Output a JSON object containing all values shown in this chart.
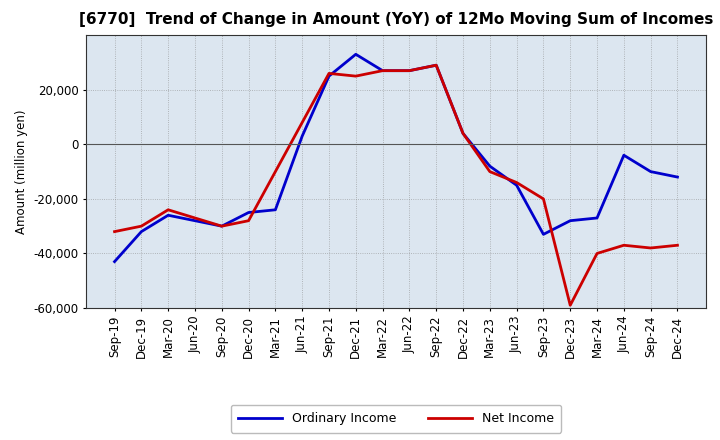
{
  "title": "[6770]  Trend of Change in Amount (YoY) of 12Mo Moving Sum of Incomes",
  "ylabel": "Amount (million yen)",
  "xlabels": [
    "Sep-19",
    "Dec-19",
    "Mar-20",
    "Jun-20",
    "Sep-20",
    "Dec-20",
    "Mar-21",
    "Jun-21",
    "Sep-21",
    "Dec-21",
    "Mar-22",
    "Jun-22",
    "Sep-22",
    "Dec-22",
    "Mar-23",
    "Jun-23",
    "Sep-23",
    "Dec-23",
    "Mar-24",
    "Jun-24",
    "Sep-24",
    "Dec-24"
  ],
  "ordinary_income": [
    -43000,
    -32000,
    -26000,
    -28000,
    -30000,
    -25000,
    -24000,
    3000,
    25000,
    33000,
    27000,
    27000,
    29000,
    4000,
    -8000,
    -15000,
    -33000,
    -28000,
    -27000,
    -4000,
    -10000,
    -12000
  ],
  "net_income": [
    -32000,
    -30000,
    -24000,
    -27000,
    -30000,
    -28000,
    -10000,
    8000,
    26000,
    25000,
    27000,
    27000,
    29000,
    4000,
    -10000,
    -14000,
    -20000,
    -59000,
    -40000,
    -37000,
    -38000,
    -37000
  ],
  "ylim": [
    -60000,
    40000
  ],
  "yticks": [
    -60000,
    -40000,
    -20000,
    0,
    20000
  ],
  "ordinary_color": "#0000cc",
  "net_color": "#cc0000",
  "bg_color": "#ffffff",
  "plot_bg_color": "#dce6f0",
  "grid_color": "#888888",
  "legend_labels": [
    "Ordinary Income",
    "Net Income"
  ],
  "title_fontsize": 11,
  "axis_fontsize": 8.5,
  "ylabel_fontsize": 8.5,
  "linewidth": 2.0
}
